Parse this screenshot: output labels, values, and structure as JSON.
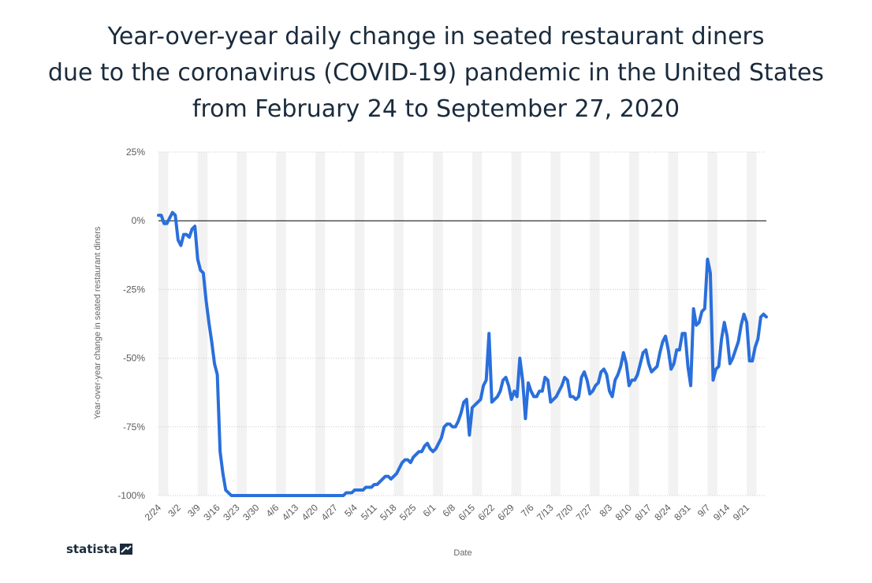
{
  "chart_data": {
    "type": "line",
    "title_lines": [
      "Year-over-year daily change in seated restaurant diners",
      "due to the coronavirus (COVID-19) pandemic  in the United States",
      "from February 24 to September 27, 2020"
    ],
    "xlabel": "Date",
    "ylabel": "Year-over-year change in seated restaurant diners",
    "ylim": [
      -100,
      25
    ],
    "y_ticks": [
      25,
      0,
      -25,
      -50,
      -75,
      -100
    ],
    "y_tick_labels": [
      "25%",
      "0%",
      "-25%",
      "-50%",
      "-75%",
      "-100%"
    ],
    "x_start": "2020-02-24",
    "x_end": "2020-09-27",
    "x_tick_labels": [
      "2/24",
      "3/2",
      "3/9",
      "3/16",
      "3/23",
      "3/30",
      "4/6",
      "4/13",
      "4/20",
      "4/27",
      "5/4",
      "5/11",
      "5/18",
      "5/25",
      "6/1",
      "6/8",
      "6/15",
      "6/22",
      "6/29",
      "7/6",
      "7/13",
      "7/20",
      "7/27",
      "8/3",
      "8/10",
      "8/17",
      "8/24",
      "8/31",
      "9/7",
      "9/14",
      "9/21"
    ],
    "grid": true,
    "line_color": "#2a6fdb",
    "series": [
      {
        "name": "",
        "values": [
          2,
          2,
          -1,
          -1,
          1,
          3,
          2,
          -7,
          -9,
          -5,
          -5,
          -6,
          -3,
          -2,
          -14,
          -18,
          -19,
          -29,
          -37,
          -44,
          -52,
          -56,
          -84,
          -92,
          -98,
          -99,
          -100,
          -100,
          -100,
          -100,
          -100,
          -100,
          -100,
          -100,
          -100,
          -100,
          -100,
          -100,
          -100,
          -100,
          -100,
          -100,
          -100,
          -100,
          -100,
          -100,
          -100,
          -100,
          -100,
          -100,
          -100,
          -100,
          -100,
          -100,
          -100,
          -100,
          -100,
          -100,
          -100,
          -100,
          -100,
          -100,
          -100,
          -100,
          -100,
          -100,
          -100,
          -99,
          -99,
          -99,
          -98,
          -98,
          -98,
          -98,
          -97,
          -97,
          -97,
          -96,
          -96,
          -95,
          -94,
          -93,
          -93,
          -94,
          -93,
          -92,
          -90,
          -88,
          -87,
          -87,
          -88,
          -86,
          -85,
          -84,
          -84,
          -82,
          -81,
          -83,
          -84,
          -83,
          -81,
          -79,
          -75,
          -74,
          -74,
          -75,
          -75,
          -73,
          -70,
          -66,
          -65,
          -78,
          -68,
          -67,
          -66,
          -65,
          -60,
          -58,
          -41,
          -66,
          -65,
          -64,
          -62,
          -58,
          -57,
          -60,
          -65,
          -62,
          -64,
          -50,
          -58,
          -72,
          -59,
          -62,
          -64,
          -64,
          -62,
          -62,
          -57,
          -58,
          -66,
          -65,
          -64,
          -62,
          -60,
          -57,
          -58,
          -64,
          -64,
          -65,
          -64,
          -57,
          -55,
          -58,
          -63,
          -62,
          -60,
          -59,
          -55,
          -54,
          -56,
          -62,
          -64,
          -58,
          -56,
          -53,
          -48,
          -52,
          -60,
          -58,
          -58,
          -56,
          -52,
          -48,
          -47,
          -52,
          -55,
          -54,
          -53,
          -48,
          -44,
          -42,
          -47,
          -54,
          -52,
          -47,
          -47,
          -41,
          -41,
          -53,
          -60,
          -32,
          -38,
          -37,
          -33,
          -32,
          -14,
          -19,
          -58,
          -54,
          -53,
          -43,
          -37,
          -42,
          -52,
          -50,
          -47,
          -44,
          -38,
          -34,
          -37,
          -51,
          -51,
          -46,
          -43,
          -35,
          -34,
          -35
        ]
      }
    ]
  },
  "branding": {
    "logo_text": "statista"
  }
}
